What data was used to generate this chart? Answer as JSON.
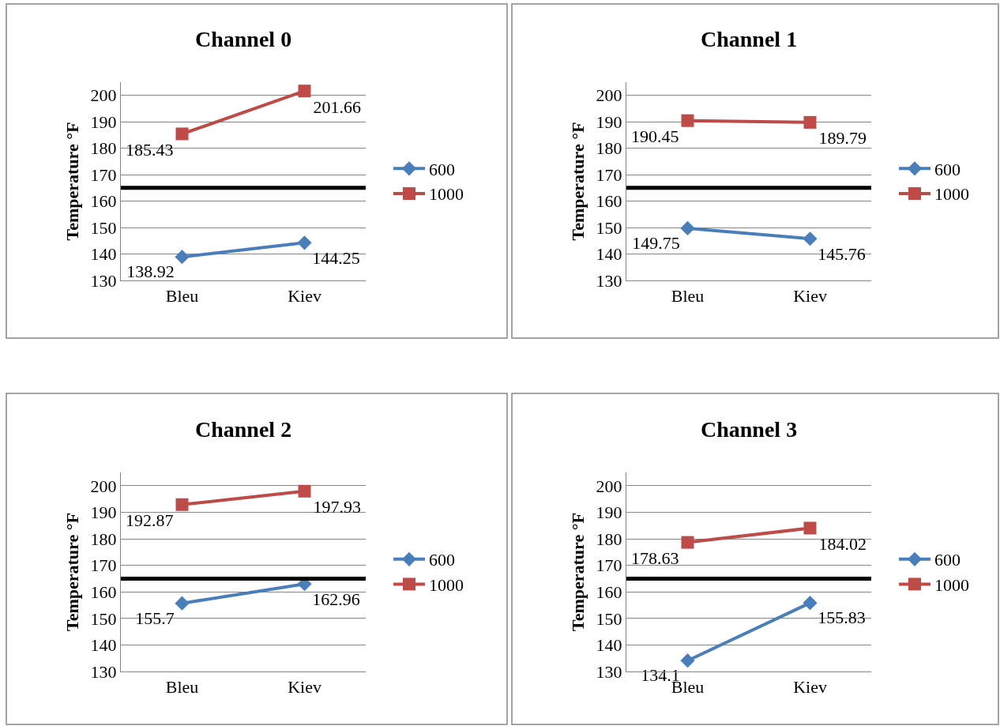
{
  "chart_data": [
    {
      "type": "line",
      "title": "Channel 0",
      "ylabel": "Temperature °F",
      "categories": [
        "Bleu",
        "Kiev"
      ],
      "ylim": [
        130,
        205
      ],
      "yticks": [
        130,
        140,
        150,
        160,
        170,
        180,
        190,
        200
      ],
      "grid": "y",
      "legend": "right",
      "data_labels": true,
      "line_style": "solid",
      "ref_lines": [
        {
          "axis": "y",
          "value": 165,
          "color": "#000000"
        }
      ],
      "series": [
        {
          "name": "600",
          "color": "#4a7ebb",
          "marker": "diamond",
          "values": [
            138.92,
            144.25
          ]
        },
        {
          "name": "1000",
          "color": "#be4b48",
          "marker": "square",
          "values": [
            185.43,
            201.66
          ]
        }
      ]
    },
    {
      "type": "line",
      "title": "Channel 1",
      "ylabel": "Temperature °F",
      "categories": [
        "Bleu",
        "Kiev"
      ],
      "ylim": [
        130,
        205
      ],
      "yticks": [
        130,
        140,
        150,
        160,
        170,
        180,
        190,
        200
      ],
      "grid": "y",
      "legend": "right",
      "data_labels": true,
      "line_style": "solid",
      "ref_lines": [
        {
          "axis": "y",
          "value": 165,
          "color": "#000000"
        }
      ],
      "series": [
        {
          "name": "600",
          "color": "#4a7ebb",
          "marker": "diamond",
          "values": [
            149.75,
            145.76
          ]
        },
        {
          "name": "1000",
          "color": "#be4b48",
          "marker": "square",
          "values": [
            190.45,
            189.79
          ]
        }
      ]
    },
    {
      "type": "line",
      "title": "Channel 2",
      "ylabel": "Temperature °F",
      "categories": [
        "Bleu",
        "Kiev"
      ],
      "ylim": [
        130,
        205
      ],
      "yticks": [
        130,
        140,
        150,
        160,
        170,
        180,
        190,
        200
      ],
      "grid": "y",
      "legend": "right",
      "data_labels": true,
      "line_style": "solid",
      "ref_lines": [
        {
          "axis": "y",
          "value": 165,
          "color": "#000000"
        }
      ],
      "series": [
        {
          "name": "600",
          "color": "#4a7ebb",
          "marker": "diamond",
          "values": [
            155.7,
            162.96
          ]
        },
        {
          "name": "1000",
          "color": "#be4b48",
          "marker": "square",
          "values": [
            192.87,
            197.93
          ]
        }
      ]
    },
    {
      "type": "line",
      "title": "Channel 3",
      "ylabel": "Temperature °F",
      "categories": [
        "Bleu",
        "Kiev"
      ],
      "ylim": [
        130,
        205
      ],
      "yticks": [
        130,
        140,
        150,
        160,
        170,
        180,
        190,
        200
      ],
      "grid": "y",
      "legend": "right",
      "data_labels": true,
      "line_style": "solid",
      "ref_lines": [
        {
          "axis": "y",
          "value": 165,
          "color": "#000000"
        }
      ],
      "series": [
        {
          "name": "600",
          "color": "#4a7ebb",
          "marker": "diamond",
          "values": [
            134.1,
            155.83
          ]
        },
        {
          "name": "1000",
          "color": "#be4b48",
          "marker": "square",
          "values": [
            178.63,
            184.02
          ]
        }
      ]
    }
  ]
}
